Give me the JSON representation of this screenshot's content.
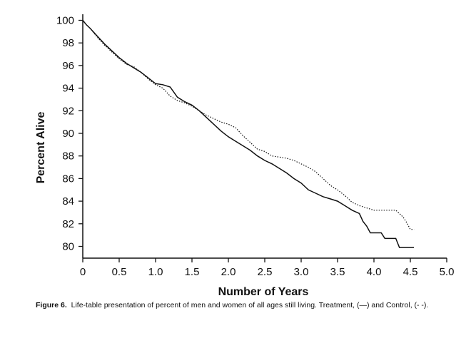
{
  "chart_data": {
    "type": "line",
    "xlabel": "Number of Years",
    "ylabel": "Percent Alive",
    "xlim": [
      0,
      5.0
    ],
    "ylim": [
      79,
      100
    ],
    "x_ticks": [
      0,
      0.5,
      1.0,
      1.5,
      2.0,
      2.5,
      3.0,
      3.5,
      4.0,
      4.5,
      5.0
    ],
    "x_tick_labels": [
      "0",
      "0.5",
      "1.0",
      "1.5",
      "2.0",
      "2.5",
      "3.0",
      "3.5",
      "4.0",
      "4.5",
      "5.0"
    ],
    "y_ticks": [
      80,
      82,
      84,
      86,
      88,
      90,
      92,
      94,
      96,
      98,
      100
    ],
    "y_tick_labels": [
      "80",
      "82",
      "84",
      "86",
      "88",
      "90",
      "92",
      "94",
      "96",
      "98",
      "100"
    ],
    "grid": false,
    "series": [
      {
        "name": "Treatment",
        "style": "solid",
        "color": "#111111",
        "x": [
          0,
          0.05,
          0.1,
          0.2,
          0.3,
          0.4,
          0.5,
          0.6,
          0.7,
          0.8,
          0.9,
          1.0,
          1.1,
          1.2,
          1.3,
          1.4,
          1.5,
          1.6,
          1.7,
          1.8,
          1.9,
          2.0,
          2.1,
          2.2,
          2.3,
          2.4,
          2.5,
          2.6,
          2.7,
          2.8,
          2.9,
          3.0,
          3.1,
          3.2,
          3.3,
          3.4,
          3.5,
          3.6,
          3.7,
          3.8,
          3.85,
          3.9,
          3.95,
          4.0,
          4.1,
          4.15,
          4.3,
          4.35,
          4.45,
          4.55
        ],
        "y": [
          100,
          99.6,
          99.3,
          98.6,
          97.9,
          97.3,
          96.7,
          96.2,
          95.8,
          95.4,
          94.9,
          94.4,
          94.3,
          94.1,
          93.2,
          92.8,
          92.5,
          92.0,
          91.4,
          90.8,
          90.2,
          89.7,
          89.3,
          88.9,
          88.5,
          88.0,
          87.6,
          87.3,
          86.9,
          86.5,
          86.0,
          85.6,
          85.0,
          84.7,
          84.4,
          84.2,
          84.0,
          83.6,
          83.2,
          82.9,
          82.2,
          81.8,
          81.2,
          81.2,
          81.2,
          80.7,
          80.7,
          79.9,
          79.9,
          79.9
        ]
      },
      {
        "name": "Control",
        "style": "dotted",
        "color": "#111111",
        "x": [
          0,
          0.05,
          0.1,
          0.2,
          0.3,
          0.4,
          0.5,
          0.6,
          0.7,
          0.8,
          0.9,
          1.0,
          1.1,
          1.2,
          1.3,
          1.4,
          1.5,
          1.6,
          1.7,
          1.8,
          1.9,
          2.0,
          2.1,
          2.2,
          2.3,
          2.4,
          2.5,
          2.6,
          2.7,
          2.8,
          2.9,
          3.0,
          3.1,
          3.2,
          3.3,
          3.4,
          3.5,
          3.6,
          3.7,
          3.8,
          3.9,
          4.0,
          4.1,
          4.2,
          4.3,
          4.4,
          4.45,
          4.5,
          4.55
        ],
        "y": [
          100,
          99.6,
          99.3,
          98.5,
          97.8,
          97.2,
          96.6,
          96.1,
          95.9,
          95.4,
          94.8,
          94.3,
          94.0,
          93.3,
          92.9,
          92.7,
          92.4,
          92.0,
          91.6,
          91.3,
          91.0,
          90.8,
          90.5,
          89.8,
          89.2,
          88.6,
          88.4,
          88.0,
          87.9,
          87.8,
          87.6,
          87.3,
          87.0,
          86.6,
          86.0,
          85.4,
          85.0,
          84.5,
          83.9,
          83.6,
          83.4,
          83.2,
          83.2,
          83.2,
          83.2,
          82.6,
          82.1,
          81.5,
          81.5
        ]
      }
    ]
  },
  "caption": {
    "label": "Figure 6.",
    "text": "Life-table presentation of percent of men and women of all ages still living. Treatment, (—) and Control, (- -)."
  }
}
